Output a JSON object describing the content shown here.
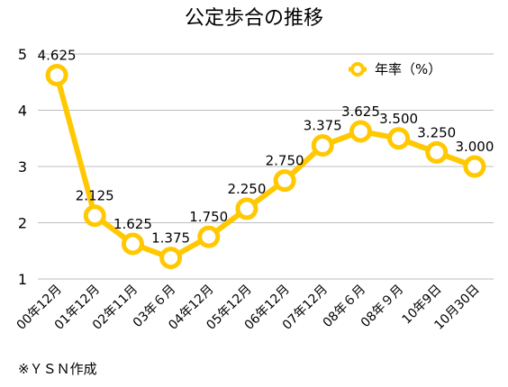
{
  "chart_data": {
    "type": "line",
    "title": "公定歩合の推移",
    "categories": [
      "00年12月",
      "01年12月",
      "02年11月",
      "03年６月",
      "04年12月",
      "05年12月",
      "06年12月",
      "07年12月",
      "08年６月",
      "08年９月",
      "10年9日",
      "10月30日"
    ],
    "series": [
      {
        "name": "年率（%）",
        "values": [
          4.625,
          2.125,
          1.625,
          1.375,
          1.75,
          2.25,
          2.75,
          3.375,
          3.625,
          3.5,
          3.25,
          3.0
        ]
      }
    ],
    "data_labels": [
      "4.625",
      "2.125",
      "1.625",
      "1.375",
      "1.750",
      "2.250",
      "2.750",
      "3.375",
      "3.625",
      "3.500",
      "3.250",
      "3.000"
    ],
    "y_ticks": [
      "1",
      "2",
      "3",
      "4",
      "5"
    ],
    "ylim": [
      1,
      5
    ],
    "grid": true,
    "legend_position": "top-right",
    "series_color": "#FFC800",
    "footnote": "※ＹＳＮ作成"
  }
}
